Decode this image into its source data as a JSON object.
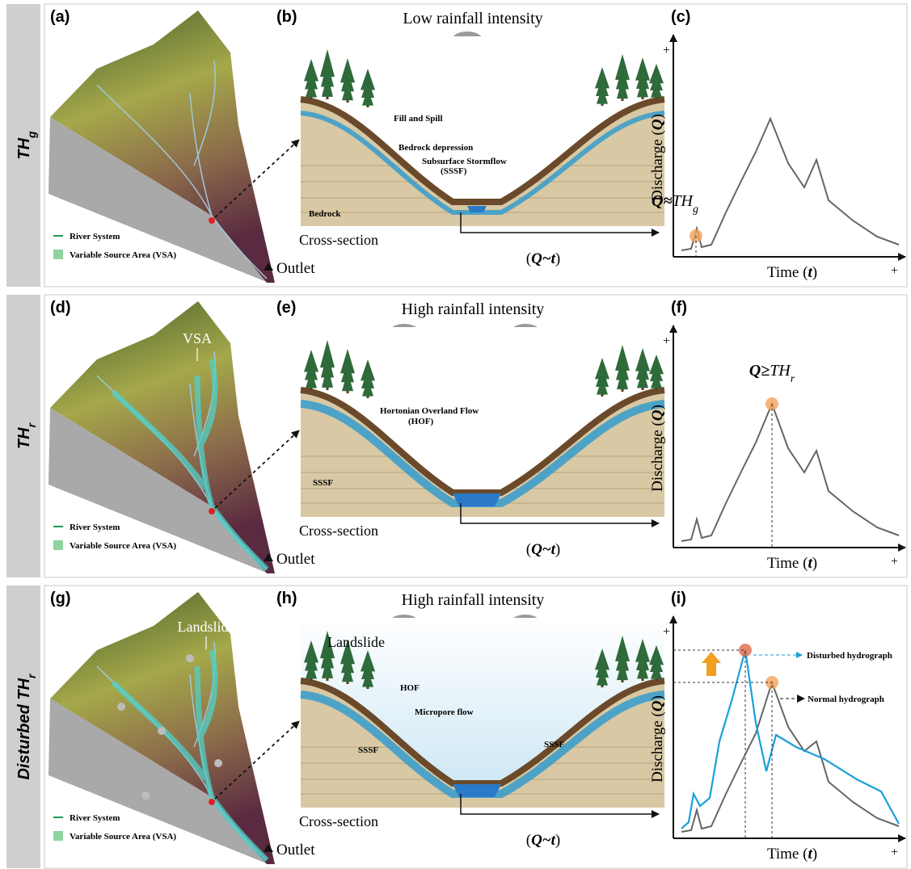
{
  "rows": [
    {
      "label": [
        "TH",
        "g"
      ],
      "terrain": {
        "panel": "(a)",
        "legend": [
          "River System",
          "Variable Source Area (VSA)"
        ],
        "outlet": "Outlet"
      },
      "section": {
        "panel": "(b)",
        "title": "Low rainfall intensity",
        "annotations": [
          "Fill and Spill",
          "Bedrock depression",
          "Subsurface Stormflow",
          "(SSSF)",
          "Bedrock"
        ],
        "caption": "Cross-section",
        "flow": [
          "(",
          "Q~t",
          ")"
        ]
      },
      "hydrograph": {
        "panel": "(c)",
        "y_plus": "+",
        "y_label": [
          "Discharge (",
          "Q",
          ")"
        ],
        "x_label": [
          "Time (",
          "t",
          ")"
        ],
        "x_plus": "+",
        "threshold": [
          "Q≈",
          "TH",
          "g"
        ]
      }
    },
    {
      "label": [
        "TH",
        "r"
      ],
      "terrain": {
        "panel": "(d)",
        "annotation": "VSA",
        "legend": [
          "River System",
          "Variable Source Area (VSA)"
        ],
        "outlet": "Outlet"
      },
      "section": {
        "panel": "(e)",
        "title": "High rainfall intensity",
        "annotations": [
          "Hortonian Overland Flow",
          "(HOF)",
          "SSSF"
        ],
        "caption": "Cross-section",
        "flow": [
          "(",
          "Q~t",
          ")"
        ]
      },
      "hydrograph": {
        "panel": "(f)",
        "y_plus": "+",
        "y_label": [
          "Discharge (",
          "Q",
          ")"
        ],
        "x_label": [
          "Time (",
          "t",
          ")"
        ],
        "x_plus": "+",
        "threshold": [
          "Q≥",
          "TH",
          "r"
        ]
      }
    },
    {
      "label": [
        "Disturbed ",
        "TH",
        "r"
      ],
      "terrain": {
        "panel": "(g)",
        "annotation": "Landslide",
        "legend": [
          "River System",
          "Variable Source Area (VSA)"
        ],
        "outlet": "Outlet"
      },
      "section": {
        "panel": "(h)",
        "title": "High rainfall intensity",
        "annotations": [
          "Landslide",
          "HOF",
          "Micropore flow",
          "SSSF",
          "SSSF"
        ],
        "caption": "Cross-section",
        "flow": [
          "(",
          "Q~t",
          ")"
        ]
      },
      "hydrograph": {
        "panel": "(i)",
        "y_plus": "+",
        "y_label": [
          "Discharge (",
          "Q",
          ")"
        ],
        "x_label": [
          "Time (",
          "t",
          ")"
        ],
        "x_plus": "+",
        "legend": [
          "Disturbed hydrograph",
          "Normal hydrograph"
        ]
      }
    }
  ]
}
